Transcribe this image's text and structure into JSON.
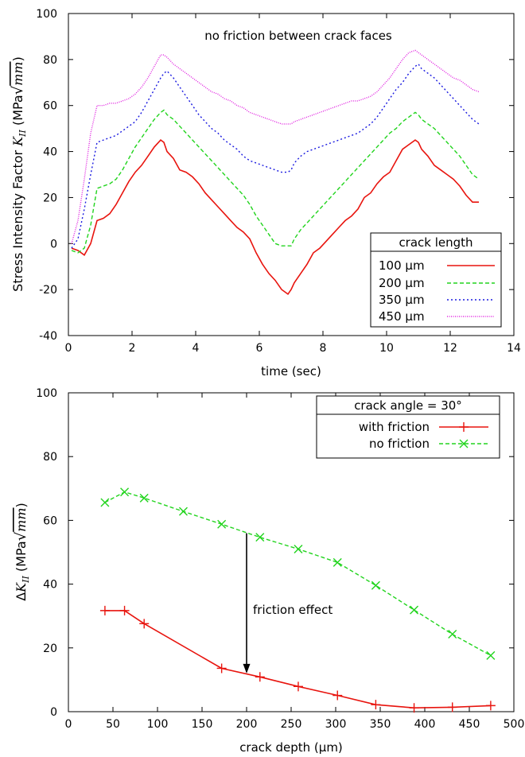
{
  "chart_data": [
    {
      "type": "line",
      "annotation": "no friction between crack faces",
      "xlabel": "time (sec)",
      "ylabel_text": "Stress Intensity Factor ",
      "ylabel_math": "K",
      "ylabel_sub": "II",
      "ylabel_unit_pre": " (MPa",
      "ylabel_unit_mm": "mm",
      "ylabel_unit_post": ")",
      "xlim": [
        0,
        14
      ],
      "ylim": [
        -40,
        100
      ],
      "xticks": [
        "0",
        "2",
        "4",
        "6",
        "8",
        "10",
        "12",
        "14"
      ],
      "yticks": [
        "-40",
        "-20",
        "0",
        "20",
        "40",
        "60",
        "80",
        "100"
      ],
      "legend_title": "crack length",
      "legend_position": "bottom-right",
      "colors": {
        "s1": "#e8140e",
        "s2": "#22d41e",
        "s3": "#1a1ae0",
        "s4": "#e020e0"
      },
      "series": [
        {
          "name": "100 µm",
          "x": [
            0.1,
            0.3,
            0.5,
            0.7,
            0.9,
            1.1,
            1.3,
            1.5,
            1.7,
            1.9,
            2.1,
            2.3,
            2.5,
            2.7,
            2.9,
            3.0,
            3.1,
            3.3,
            3.5,
            3.7,
            3.9,
            4.1,
            4.3,
            4.5,
            4.7,
            4.9,
            5.1,
            5.3,
            5.5,
            5.7,
            5.9,
            6.1,
            6.3,
            6.5,
            6.7,
            6.9,
            7.0,
            7.1,
            7.3,
            7.5,
            7.7,
            7.9,
            8.1,
            8.3,
            8.5,
            8.7,
            8.9,
            9.1,
            9.3,
            9.5,
            9.7,
            9.9,
            10.1,
            10.3,
            10.5,
            10.7,
            10.9,
            11.0,
            11.1,
            11.3,
            11.5,
            11.7,
            11.9,
            12.1,
            12.3,
            12.5,
            12.7,
            12.9
          ],
          "y": [
            -2,
            -3,
            -5,
            0,
            10,
            11,
            13,
            17,
            22,
            27,
            31,
            34,
            38,
            42,
            45,
            44,
            40,
            37,
            32,
            31,
            29,
            26,
            22,
            19,
            16,
            13,
            10,
            7,
            5,
            2,
            -4,
            -9,
            -13,
            -16,
            -20,
            -22,
            -20,
            -17,
            -13,
            -9,
            -4,
            -2,
            1,
            4,
            7,
            10,
            12,
            15,
            20,
            22,
            26,
            29,
            31,
            36,
            41,
            43,
            45,
            44,
            41,
            38,
            34,
            32,
            30,
            28,
            25,
            21,
            18,
            18
          ]
        },
        {
          "name": "200 µm",
          "x": [
            0.1,
            0.3,
            0.5,
            0.7,
            0.9,
            1.1,
            1.3,
            1.5,
            1.7,
            1.9,
            2.1,
            2.3,
            2.5,
            2.7,
            2.9,
            3.0,
            3.1,
            3.3,
            3.5,
            3.7,
            3.9,
            4.1,
            4.3,
            4.5,
            4.7,
            4.9,
            5.1,
            5.3,
            5.5,
            5.7,
            5.9,
            6.1,
            6.3,
            6.5,
            6.7,
            6.9,
            7.0,
            7.1,
            7.3,
            7.5,
            7.7,
            7.9,
            8.1,
            8.3,
            8.5,
            8.7,
            8.9,
            9.1,
            9.3,
            9.5,
            9.7,
            9.9,
            10.1,
            10.3,
            10.5,
            10.7,
            10.9,
            11.0,
            11.1,
            11.3,
            11.5,
            11.7,
            11.9,
            12.1,
            12.3,
            12.5,
            12.7,
            12.9
          ],
          "y": [
            -3,
            -4,
            -2,
            8,
            24,
            25,
            26,
            28,
            32,
            37,
            42,
            46,
            50,
            54,
            57,
            58,
            56,
            54,
            51,
            48,
            45,
            42,
            39,
            36,
            33,
            30,
            27,
            24,
            21,
            17,
            12,
            8,
            4,
            0,
            -1,
            -1,
            -1,
            2,
            6,
            9,
            12,
            15,
            18,
            21,
            24,
            27,
            30,
            33,
            36,
            39,
            42,
            45,
            48,
            50,
            53,
            55,
            57,
            56,
            54,
            52,
            50,
            47,
            44,
            41,
            38,
            34,
            30,
            28
          ]
        },
        {
          "name": "350 µm",
          "x": [
            0.1,
            0.3,
            0.5,
            0.7,
            0.9,
            1.1,
            1.3,
            1.5,
            1.7,
            1.9,
            2.1,
            2.3,
            2.5,
            2.7,
            2.9,
            3.0,
            3.1,
            3.3,
            3.5,
            3.7,
            3.9,
            4.1,
            4.3,
            4.5,
            4.7,
            4.9,
            5.1,
            5.3,
            5.5,
            5.7,
            5.9,
            6.1,
            6.3,
            6.5,
            6.7,
            6.9,
            7.0,
            7.1,
            7.3,
            7.5,
            7.7,
            7.9,
            8.1,
            8.3,
            8.5,
            8.7,
            8.9,
            9.1,
            9.3,
            9.5,
            9.7,
            9.9,
            10.1,
            10.3,
            10.5,
            10.7,
            10.9,
            11.0,
            11.1,
            11.3,
            11.5,
            11.7,
            11.9,
            12.1,
            12.3,
            12.5,
            12.7,
            12.9
          ],
          "y": [
            -2,
            2,
            15,
            30,
            44,
            45,
            46,
            47,
            49,
            51,
            53,
            57,
            62,
            67,
            72,
            74,
            75,
            72,
            68,
            64,
            60,
            56,
            53,
            50,
            48,
            45,
            43,
            41,
            38,
            36,
            35,
            34,
            33,
            32,
            31,
            31,
            32,
            35,
            38,
            40,
            41,
            42,
            43,
            44,
            45,
            46,
            47,
            48,
            50,
            52,
            55,
            59,
            63,
            67,
            70,
            74,
            77,
            78,
            76,
            74,
            72,
            69,
            66,
            63,
            60,
            57,
            54,
            52
          ]
        },
        {
          "name": "450 µm",
          "x": [
            0.1,
            0.3,
            0.5,
            0.7,
            0.9,
            1.1,
            1.3,
            1.5,
            1.7,
            1.9,
            2.1,
            2.3,
            2.5,
            2.7,
            2.9,
            3.0,
            3.1,
            3.3,
            3.5,
            3.7,
            3.9,
            4.1,
            4.3,
            4.5,
            4.7,
            4.9,
            5.1,
            5.3,
            5.5,
            5.7,
            5.9,
            6.1,
            6.3,
            6.5,
            6.7,
            6.9,
            7.0,
            7.1,
            7.3,
            7.5,
            7.7,
            7.9,
            8.1,
            8.3,
            8.5,
            8.7,
            8.9,
            9.1,
            9.3,
            9.5,
            9.7,
            9.9,
            10.1,
            10.3,
            10.5,
            10.7,
            10.9,
            11.0,
            11.1,
            11.3,
            11.5,
            11.7,
            11.9,
            12.1,
            12.3,
            12.5,
            12.7,
            12.9
          ],
          "y": [
            0,
            10,
            28,
            48,
            60,
            60,
            61,
            61,
            62,
            63,
            65,
            68,
            72,
            77,
            82,
            82,
            81,
            78,
            76,
            74,
            72,
            70,
            68,
            66,
            65,
            63,
            62,
            60,
            59,
            57,
            56,
            55,
            54,
            53,
            52,
            52,
            52,
            53,
            54,
            55,
            56,
            57,
            58,
            59,
            60,
            61,
            62,
            62,
            63,
            64,
            66,
            69,
            72,
            76,
            80,
            83,
            84,
            83,
            82,
            80,
            78,
            76,
            74,
            72,
            71,
            69,
            67,
            66
          ]
        }
      ]
    },
    {
      "type": "line",
      "xlabel": "crack depth (µm)",
      "ylabel_delta": "Δ",
      "ylabel_math": "K",
      "ylabel_sub": "II",
      "ylabel_unit_pre": " (MPa",
      "ylabel_unit_mm": "mm",
      "ylabel_unit_post": ")",
      "xlim": [
        0,
        500
      ],
      "ylim": [
        0,
        100
      ],
      "xticks": [
        "0",
        "50",
        "100",
        "150",
        "200",
        "250",
        "300",
        "350",
        "400",
        "450",
        "500"
      ],
      "yticks": [
        "0",
        "20",
        "40",
        "60",
        "80",
        "100"
      ],
      "legend_title": "crack angle = 30°",
      "legend_position": "top-right",
      "annotation": "friction effect",
      "arrow": {
        "x": 200,
        "y_from": 56,
        "y_to": 12
      },
      "colors": {
        "s1": "#e8140e",
        "s2": "#22d41e"
      },
      "series": [
        {
          "name": "with friction",
          "marker": "+",
          "x": [
            41,
            63,
            85,
            172,
            215,
            258,
            302,
            345,
            388,
            431,
            474
          ],
          "y": [
            31.7,
            31.7,
            27.6,
            13.6,
            10.9,
            7.9,
            5.1,
            2.2,
            1.2,
            1.4,
            1.9
          ]
        },
        {
          "name": "no friction",
          "marker": "x",
          "x": [
            41,
            63,
            85,
            129,
            172,
            215,
            258,
            302,
            345,
            388,
            431,
            474
          ],
          "y": [
            65.6,
            68.9,
            67.0,
            62.8,
            58.8,
            54.7,
            51.0,
            46.8,
            39.6,
            31.9,
            24.3,
            17.6
          ]
        }
      ]
    }
  ]
}
